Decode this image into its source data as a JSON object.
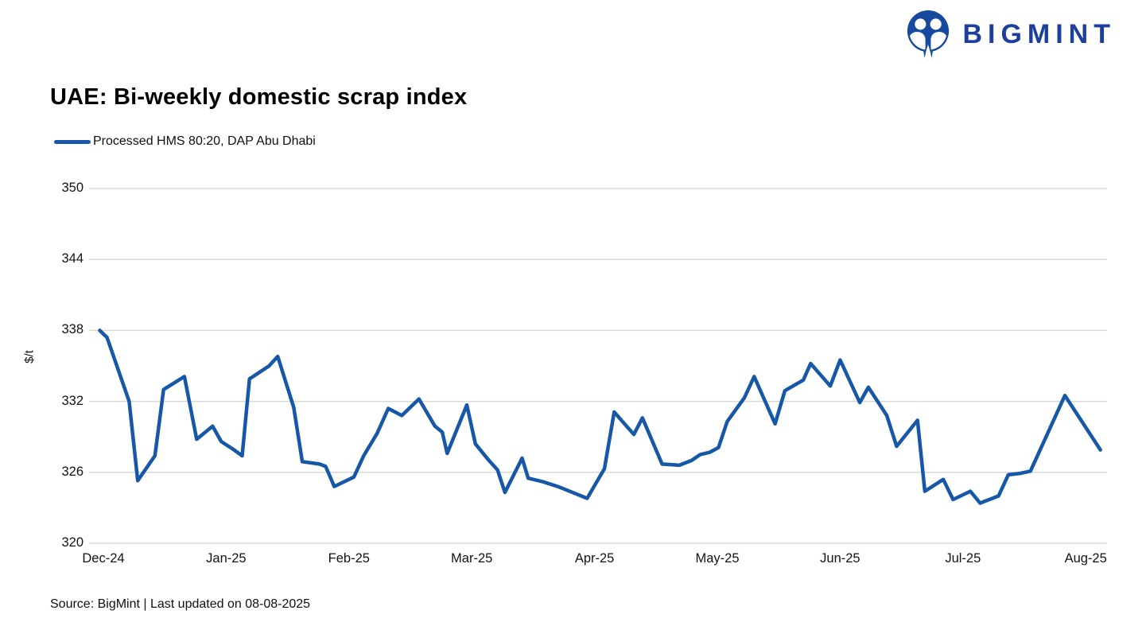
{
  "brand": {
    "name": "BIGMINT",
    "logo_color": "#1B3F9B",
    "icon_color": "#17499E"
  },
  "title": "UAE: Bi-weekly domestic scrap index",
  "legend": {
    "label": "Processed HMS 80:20, DAP Abu Dhabi"
  },
  "y_axis_title": "$/t",
  "source": "Source: BigMint | Last updated on 08-08-2025",
  "chart_data": {
    "type": "line",
    "title": "UAE: Bi-weekly domestic scrap index",
    "series_name": "Processed HMS 80:20, DAP Abu Dhabi",
    "unit": "$/t",
    "line_color": "#1657A7",
    "grid_color": "#D9D9D9",
    "legend_position": "top-left",
    "grid": "horizontal",
    "ylim": [
      320,
      350
    ],
    "yticks": [
      320,
      326,
      332,
      338,
      344,
      350
    ],
    "categories": [
      "Dec-24",
      "Jan-25",
      "Feb-25",
      "Mar-25",
      "Apr-25",
      "May-25",
      "Jun-25",
      "Jul-25",
      "Aug-25"
    ],
    "x_unit": "months_after_Dec-24",
    "points": [
      [
        -0.03,
        338.0
      ],
      [
        0.03,
        337.4
      ],
      [
        0.21,
        332.0
      ],
      [
        0.28,
        325.3
      ],
      [
        0.42,
        327.4
      ],
      [
        0.49,
        333.0
      ],
      [
        0.66,
        334.1
      ],
      [
        0.76,
        328.8
      ],
      [
        0.89,
        329.9
      ],
      [
        0.96,
        328.6
      ],
      [
        1.05,
        328.0
      ],
      [
        1.13,
        327.4
      ],
      [
        1.19,
        333.9
      ],
      [
        1.35,
        335.0
      ],
      [
        1.42,
        335.8
      ],
      [
        1.55,
        331.5
      ],
      [
        1.62,
        326.9
      ],
      [
        1.76,
        326.7
      ],
      [
        1.81,
        326.5
      ],
      [
        1.88,
        324.8
      ],
      [
        2.04,
        325.6
      ],
      [
        2.12,
        327.4
      ],
      [
        2.23,
        329.3
      ],
      [
        2.32,
        331.4
      ],
      [
        2.43,
        330.8
      ],
      [
        2.57,
        332.2
      ],
      [
        2.7,
        329.9
      ],
      [
        2.76,
        329.4
      ],
      [
        2.8,
        327.6
      ],
      [
        2.96,
        331.7
      ],
      [
        3.03,
        328.4
      ],
      [
        3.14,
        327.0
      ],
      [
        3.21,
        326.2
      ],
      [
        3.27,
        324.3
      ],
      [
        3.41,
        327.2
      ],
      [
        3.46,
        325.5
      ],
      [
        3.58,
        325.2
      ],
      [
        3.7,
        324.8
      ],
      [
        3.94,
        323.8
      ],
      [
        4.08,
        326.3
      ],
      [
        4.16,
        331.1
      ],
      [
        4.32,
        329.2
      ],
      [
        4.39,
        330.6
      ],
      [
        4.55,
        326.7
      ],
      [
        4.69,
        326.6
      ],
      [
        4.79,
        327.0
      ],
      [
        4.86,
        327.5
      ],
      [
        4.94,
        327.7
      ],
      [
        5.01,
        328.1
      ],
      [
        5.08,
        330.3
      ],
      [
        5.22,
        332.3
      ],
      [
        5.3,
        334.1
      ],
      [
        5.47,
        330.1
      ],
      [
        5.55,
        332.9
      ],
      [
        5.7,
        333.8
      ],
      [
        5.76,
        335.2
      ],
      [
        5.92,
        333.3
      ],
      [
        6.0,
        335.5
      ],
      [
        6.16,
        331.9
      ],
      [
        6.23,
        333.2
      ],
      [
        6.38,
        330.8
      ],
      [
        6.46,
        328.2
      ],
      [
        6.63,
        330.4
      ],
      [
        6.69,
        324.4
      ],
      [
        6.84,
        325.4
      ],
      [
        6.92,
        323.7
      ],
      [
        7.06,
        324.4
      ],
      [
        7.14,
        323.4
      ],
      [
        7.29,
        324.0
      ],
      [
        7.37,
        325.8
      ],
      [
        7.46,
        325.9
      ],
      [
        7.55,
        326.1
      ],
      [
        7.83,
        332.5
      ],
      [
        8.12,
        327.9
      ]
    ]
  }
}
